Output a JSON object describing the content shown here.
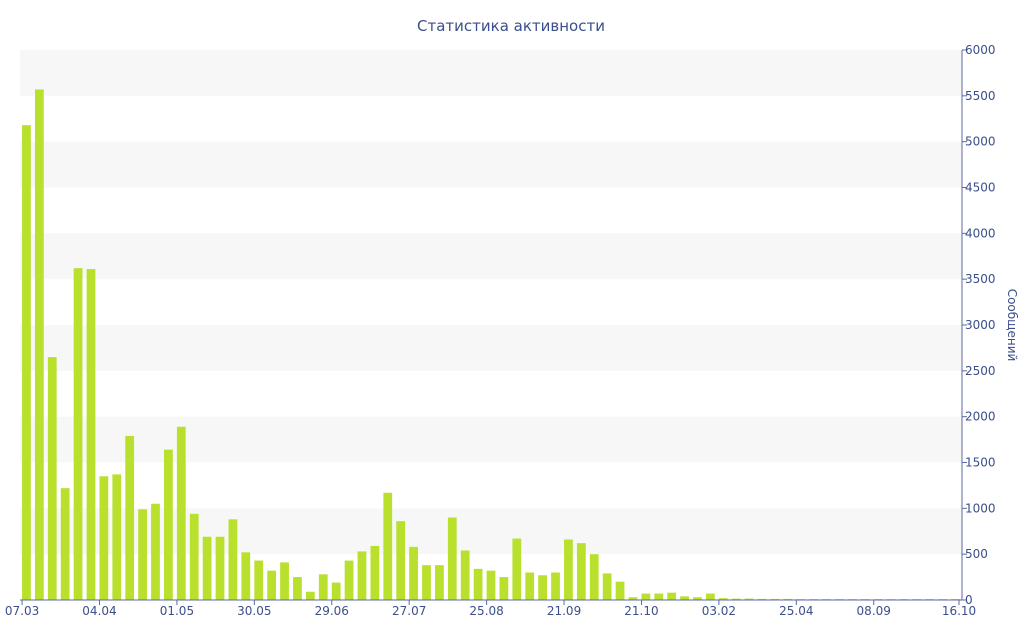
{
  "chart_data": {
    "type": "bar",
    "title": "Статистика активности",
    "ylabel": "Сообщений",
    "xlabel": "",
    "ylim": [
      0,
      6000
    ],
    "yticks": [
      0,
      500,
      1000,
      1500,
      2000,
      2500,
      3000,
      3500,
      4000,
      4500,
      5000,
      5500,
      6000
    ],
    "y_axis_position": "right",
    "grid": "alternating-bands",
    "bar_color": "#b8e02d",
    "x_tick_labels": [
      "07.03",
      "04.04",
      "01.05",
      "30.05",
      "29.06",
      "27.07",
      "25.08",
      "21.09",
      "21.10",
      "03.02",
      "25.04",
      "08.09",
      "16.10"
    ],
    "x_tick_positions": [
      0,
      6,
      12,
      18,
      24,
      30,
      36,
      42,
      48,
      54,
      60,
      66,
      72
    ],
    "values": [
      5180,
      5570,
      2650,
      1220,
      3620,
      3610,
      1350,
      1370,
      1790,
      990,
      1050,
      1640,
      1890,
      940,
      690,
      690,
      880,
      520,
      430,
      320,
      410,
      250,
      90,
      280,
      190,
      430,
      530,
      590,
      1170,
      860,
      580,
      380,
      380,
      900,
      540,
      340,
      320,
      250,
      670,
      300,
      270,
      300,
      660,
      620,
      500,
      290,
      200,
      30,
      70,
      70,
      80,
      40,
      30,
      70,
      20,
      15,
      15,
      12,
      12,
      12,
      10,
      10,
      10,
      10,
      10,
      10,
      10,
      10,
      10,
      10,
      10,
      10,
      10
    ]
  }
}
